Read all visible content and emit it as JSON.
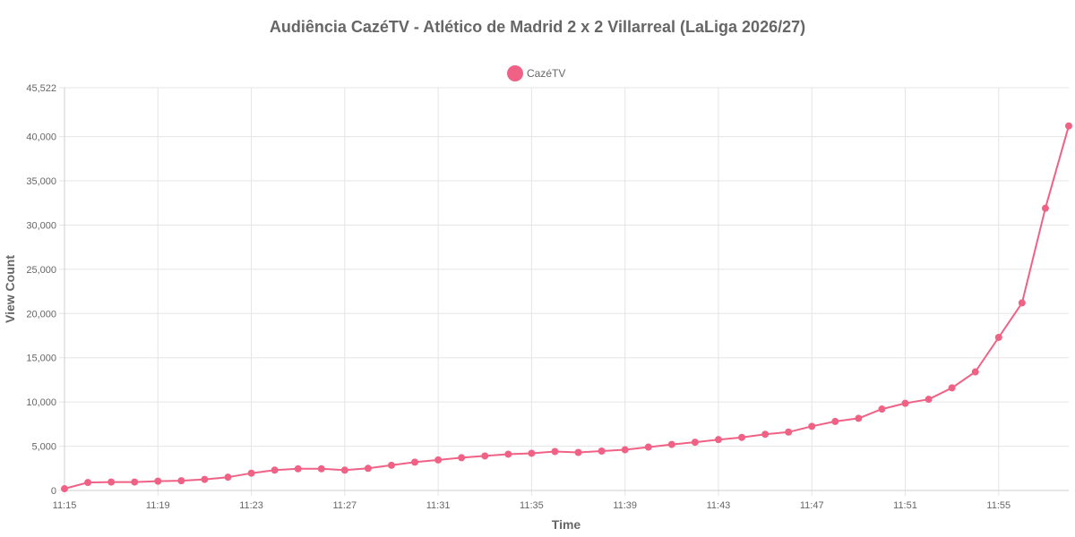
{
  "chart_data": {
    "type": "line",
    "title": "Audiência CazéTV - Atlético de Madrid 2 x 2 Villarreal (LaLiga 2026/27)",
    "xlabel": "Time",
    "ylabel": "View Count",
    "ylim": [
      0,
      45522
    ],
    "y_ticks": [
      "0",
      "5,000",
      "10,000",
      "15,000",
      "20,000",
      "25,000",
      "30,000",
      "35,000",
      "40,000",
      "45,522"
    ],
    "y_tick_values": [
      0,
      5000,
      10000,
      15000,
      20000,
      25000,
      30000,
      35000,
      40000,
      45522
    ],
    "x_ticks": [
      "11:15",
      "11:19",
      "11:23",
      "11:27",
      "11:31",
      "11:35",
      "11:39",
      "11:43",
      "11:47",
      "11:51",
      "11:55"
    ],
    "grid": true,
    "legend_position": "top-center",
    "x": [
      "11:15",
      "11:16",
      "11:17",
      "11:18",
      "11:19",
      "11:20",
      "11:21",
      "11:22",
      "11:23",
      "11:24",
      "11:25",
      "11:26",
      "11:27",
      "11:28",
      "11:29",
      "11:30",
      "11:31",
      "11:32",
      "11:33",
      "11:34",
      "11:35",
      "11:36",
      "11:37",
      "11:38",
      "11:39",
      "11:40",
      "11:41",
      "11:42",
      "11:43",
      "11:44",
      "11:45",
      "11:46",
      "11:47",
      "11:48",
      "11:49",
      "11:50",
      "11:51",
      "11:52",
      "11:53",
      "11:54",
      "11:55",
      "11:56",
      "11:57",
      "11:58"
    ],
    "series": [
      {
        "name": "CazéTV",
        "color": "#f06285",
        "values": [
          200,
          900,
          950,
          950,
          1050,
          1100,
          1250,
          1500,
          1950,
          2300,
          2450,
          2450,
          2300,
          2500,
          2850,
          3200,
          3450,
          3700,
          3900,
          4100,
          4200,
          4400,
          4300,
          4450,
          4600,
          4900,
          5200,
          5450,
          5750,
          6000,
          6350,
          6600,
          7250,
          7800,
          8150,
          9200,
          9850,
          10300,
          11600,
          13400,
          17300,
          21200,
          31900,
          41200
        ]
      }
    ]
  }
}
